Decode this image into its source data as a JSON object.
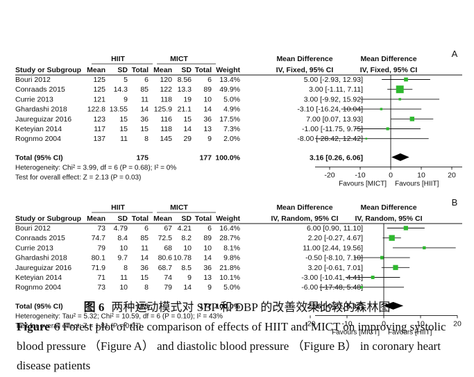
{
  "caption": {
    "cn_label": "图 6",
    "cn_text": "两种运动模式对 SBP 和 DBP 的改善效果比较的森林图",
    "en_label": "Figure",
    "en_text": "6 Forest plot of the comparison of effects of HIIT and MICT on improving systolic blood pressure （Figure A） and diastolic blood pressure （Figure B） in coronary heart disease patients"
  },
  "chart_data": [
    {
      "type": "forest",
      "panel": "A",
      "group1": "HIIT",
      "group2": "MICT",
      "headers": {
        "study": "Study or Subgroup",
        "mean": "Mean",
        "sd": "SD",
        "total": "Total",
        "weight": "Weight",
        "md_title": "Mean Difference",
        "md_method": "IV, Fixed, 95% CI",
        "plot_title": "Mean Difference",
        "plot_method": "IV, Fixed, 95% CI"
      },
      "studies": [
        {
          "name": "Bouri 2012",
          "m1": "125",
          "sd1": "5",
          "n1": "6",
          "m2": "120",
          "sd2": "8.56",
          "n2": "6",
          "weight": "13.4%",
          "ci_text": "5.00 [-2.93, 12.93]",
          "md": 5.0,
          "lo": -2.93,
          "hi": 12.93
        },
        {
          "name": "Conraads 2015",
          "m1": "125",
          "sd1": "14.3",
          "n1": "85",
          "m2": "122",
          "sd2": "13.3",
          "n2": "89",
          "weight": "49.9%",
          "ci_text": "3.00 [-1.11, 7.11]",
          "md": 3.0,
          "lo": -1.11,
          "hi": 7.11
        },
        {
          "name": "Currie 2013",
          "m1": "121",
          "sd1": "9",
          "n1": "11",
          "m2": "118",
          "sd2": "19",
          "n2": "10",
          "weight": "5.0%",
          "ci_text": "3.00 [-9.92, 15.92]",
          "md": 3.0,
          "lo": -9.92,
          "hi": 15.92
        },
        {
          "name": "Ghardashi 2018",
          "m1": "122.8",
          "sd1": "13.55",
          "n1": "14",
          "m2": "125.9",
          "sd2": "21.1",
          "n2": "14",
          "weight": "4.9%",
          "ci_text": "-3.10 [-16.24, 10.04]",
          "md": -3.1,
          "lo": -16.24,
          "hi": 10.04
        },
        {
          "name": "Jaureguizar 2016",
          "m1": "123",
          "sd1": "15",
          "n1": "36",
          "m2": "116",
          "sd2": "15",
          "n2": "36",
          "weight": "17.5%",
          "ci_text": "7.00 [0.07, 13.93]",
          "md": 7.0,
          "lo": 0.07,
          "hi": 13.93
        },
        {
          "name": "Keteyian 2014",
          "m1": "117",
          "sd1": "15",
          "n1": "15",
          "m2": "118",
          "sd2": "14",
          "n2": "13",
          "weight": "7.3%",
          "ci_text": "-1.00 [-11.75, 9.75]",
          "md": -1.0,
          "lo": -11.75,
          "hi": 9.75
        },
        {
          "name": "Rognmo 2004",
          "m1": "137",
          "sd1": "11",
          "n1": "8",
          "m2": "145",
          "sd2": "29",
          "n2": "9",
          "weight": "2.0%",
          "ci_text": "-8.00 [-28.42, 12.42]",
          "md": -8.0,
          "lo": -28.42,
          "hi": 12.42
        }
      ],
      "total": {
        "name": "Total (95% CI)",
        "n1": "175",
        "n2": "177",
        "weight": "100.0%",
        "ci_text": "3.16 [0.26, 6.06]",
        "md": 3.16,
        "lo": 0.26,
        "hi": 6.06
      },
      "heterogeneity": "Heterogeneity: Chi² = 3.99, df = 6 (P = 0.68); I² = 0%",
      "overall_effect": "Test for overall effect: Z = 2.13 (P = 0.03)",
      "xlim": [
        -25,
        25
      ],
      "ticks": [
        -20,
        -10,
        0,
        10,
        20
      ],
      "tick_labels": [
        "-20",
        "-10",
        "0",
        "10",
        "20"
      ],
      "favours_left": "Favours [MICT]",
      "favours_right": "Favours [HIIT]",
      "marker_color": "#2eb82e"
    },
    {
      "type": "forest",
      "panel": "B",
      "group1": "HIIT",
      "group2": "MICT",
      "headers": {
        "study": "Study or Subgroup",
        "mean": "Mean",
        "sd": "SD",
        "total": "Total",
        "weight": "Weight",
        "md_title": "Mean Difference",
        "md_method": "IV, Random, 95% CI",
        "plot_title": "Mean Difference",
        "plot_method": "IV, Random, 95% CI"
      },
      "studies": [
        {
          "name": "Bouri 2012",
          "m1": "73",
          "sd1": "4.79",
          "n1": "6",
          "m2": "67",
          "sd2": "4.21",
          "n2": "6",
          "weight": "16.4%",
          "ci_text": "6.00 [0.90, 11.10]",
          "md": 6.0,
          "lo": 0.9,
          "hi": 11.1
        },
        {
          "name": "Conraads 2015",
          "m1": "74.7",
          "sd1": "8.4",
          "n1": "85",
          "m2": "72.5",
          "sd2": "8.2",
          "n2": "89",
          "weight": "28.7%",
          "ci_text": "2.20 [-0.27, 4.67]",
          "md": 2.2,
          "lo": -0.27,
          "hi": 4.67
        },
        {
          "name": "Currie 2013",
          "m1": "79",
          "sd1": "10",
          "n1": "11",
          "m2": "68",
          "sd2": "10",
          "n2": "10",
          "weight": "8.1%",
          "ci_text": "11.00 [2.44, 19.56]",
          "md": 11.0,
          "lo": 2.44,
          "hi": 19.56
        },
        {
          "name": "Ghardashi 2018",
          "m1": "80.1",
          "sd1": "9.7",
          "n1": "14",
          "m2": "80.6",
          "sd2": "10.78",
          "n2": "14",
          "weight": "9.8%",
          "ci_text": "-0.50 [-8.10, 7.10]",
          "md": -0.5,
          "lo": -8.1,
          "hi": 7.1
        },
        {
          "name": "Jaureguizar 2016",
          "m1": "71.9",
          "sd1": "8",
          "n1": "36",
          "m2": "68.7",
          "sd2": "8.5",
          "n2": "36",
          "weight": "21.8%",
          "ci_text": "3.20 [-0.61, 7.01]",
          "md": 3.2,
          "lo": -0.61,
          "hi": 7.01
        },
        {
          "name": "Keteyian 2014",
          "m1": "71",
          "sd1": "11",
          "n1": "15",
          "m2": "74",
          "sd2": "9",
          "n2": "13",
          "weight": "10.1%",
          "ci_text": "-3.00 [-10.41, 4.41]",
          "md": -3.0,
          "lo": -10.41,
          "hi": 4.41
        },
        {
          "name": "Rognmo 2004",
          "m1": "73",
          "sd1": "10",
          "n1": "8",
          "m2": "79",
          "sd2": "14",
          "n2": "9",
          "weight": "5.0%",
          "ci_text": "-6.00 [-17.48, 5.48]",
          "md": -6.0,
          "lo": -17.48,
          "hi": 5.48
        }
      ],
      "total": {
        "name": "Total (95% CI)",
        "n1": "175",
        "n2": "177",
        "weight": "100.0%",
        "ci_text": "2.56 [-0.21, 5.32]",
        "md": 2.56,
        "lo": -0.21,
        "hi": 5.32
      },
      "heterogeneity": "Heterogeneity: Tau² = 5.32; Chi² = 10.59, df = 6 (P = 0.10); I² = 43%",
      "overall_effect": "Test for overall effect: Z = 1.81 (P = 0.07)",
      "xlim": [
        -20,
        20
      ],
      "ticks": [
        -20,
        -10,
        0,
        10,
        20
      ],
      "tick_labels": [
        "-20",
        "-10",
        "0",
        "10",
        "20"
      ],
      "favours_left": "Favours [MICT]",
      "favours_right": "Favours [HIIT]",
      "marker_color": "#2eb82e"
    }
  ]
}
